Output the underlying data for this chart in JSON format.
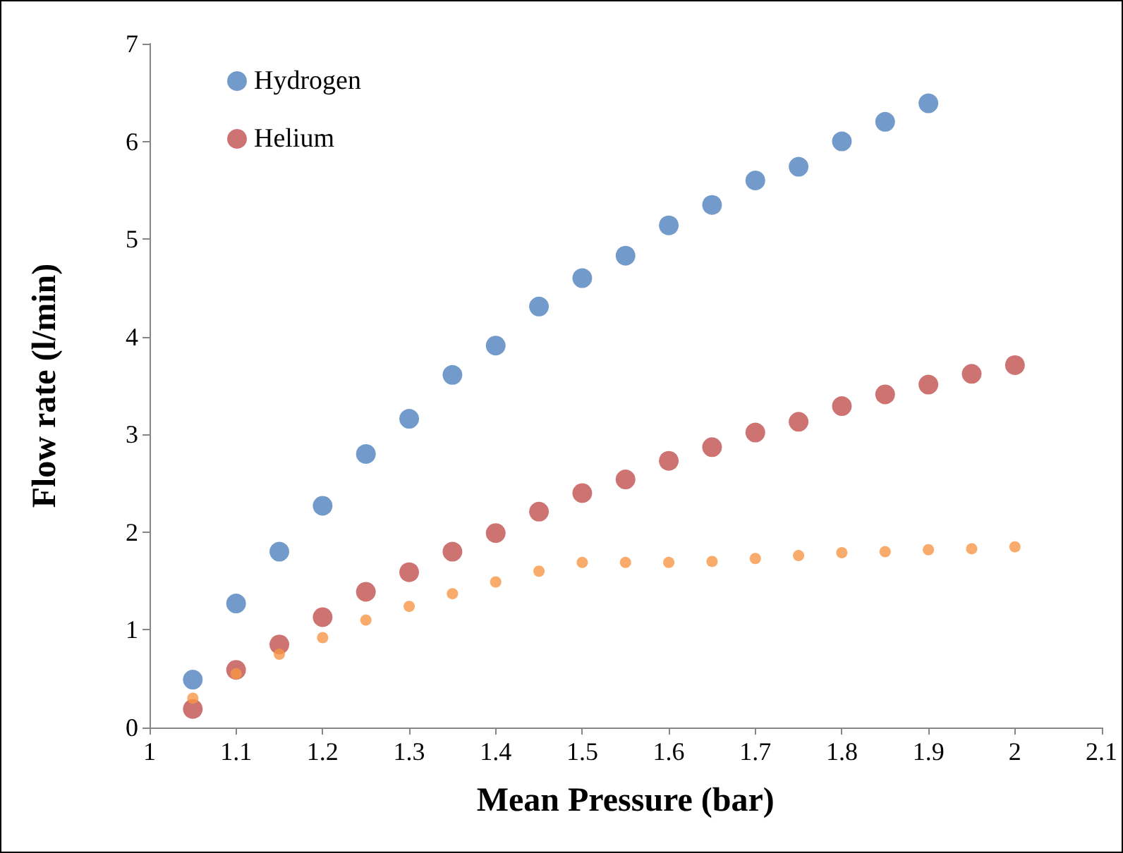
{
  "chart_data": {
    "type": "scatter",
    "xlabel": "Mean Pressure (bar)",
    "ylabel": "Flow rate (l/min)",
    "xlim": [
      1,
      2.1
    ],
    "xticks": [
      1,
      1.1,
      1.2,
      1.3,
      1.4,
      1.5,
      1.6,
      1.7,
      1.8,
      1.9,
      2,
      2.1
    ],
    "ylim": [
      0,
      7
    ],
    "yticks": [
      0,
      1,
      2,
      3,
      4,
      5,
      6,
      7
    ],
    "grid": false,
    "legend": "top left",
    "marker": "circle",
    "series": [
      {
        "name": "Hydrogen",
        "color": "#4f81bd",
        "x": [
          1.05,
          1.1,
          1.15,
          1.2,
          1.25,
          1.3,
          1.35,
          1.4,
          1.45,
          1.5,
          1.55,
          1.6,
          1.65,
          1.7,
          1.75,
          1.8,
          1.85,
          1.9
        ],
        "values": [
          0.49,
          1.27,
          1.8,
          2.27,
          2.8,
          3.16,
          3.61,
          3.91,
          4.31,
          4.6,
          4.83,
          5.14,
          5.35,
          5.6,
          5.74,
          6.0,
          6.2,
          6.39
        ]
      },
      {
        "name": "Helium",
        "color": "#c0504d",
        "x": [
          1.05,
          1.1,
          1.15,
          1.2,
          1.25,
          1.3,
          1.35,
          1.4,
          1.45,
          1.5,
          1.55,
          1.6,
          1.65,
          1.7,
          1.75,
          1.8,
          1.85,
          1.9,
          1.95,
          2.0
        ],
        "values": [
          0.19,
          0.59,
          0.85,
          1.13,
          1.39,
          1.59,
          1.8,
          1.99,
          2.21,
          2.4,
          2.54,
          2.73,
          2.87,
          3.02,
          3.13,
          3.29,
          3.41,
          3.51,
          3.62,
          3.71
        ]
      },
      {
        "color": "#f79646",
        "x": [
          1.05,
          1.1,
          1.15,
          1.2,
          1.25,
          1.3,
          1.35,
          1.4,
          1.45,
          1.5,
          1.55,
          1.6,
          1.65,
          1.7,
          1.75,
          1.8,
          1.85,
          1.9,
          1.95,
          2.0
        ],
        "values": [
          0.3,
          0.55,
          0.75,
          0.92,
          1.1,
          1.24,
          1.37,
          1.49,
          1.6,
          1.69,
          1.69,
          1.69,
          1.7,
          1.73,
          1.76,
          1.79,
          1.8,
          1.82,
          1.83,
          1.85
        ]
      }
    ]
  }
}
